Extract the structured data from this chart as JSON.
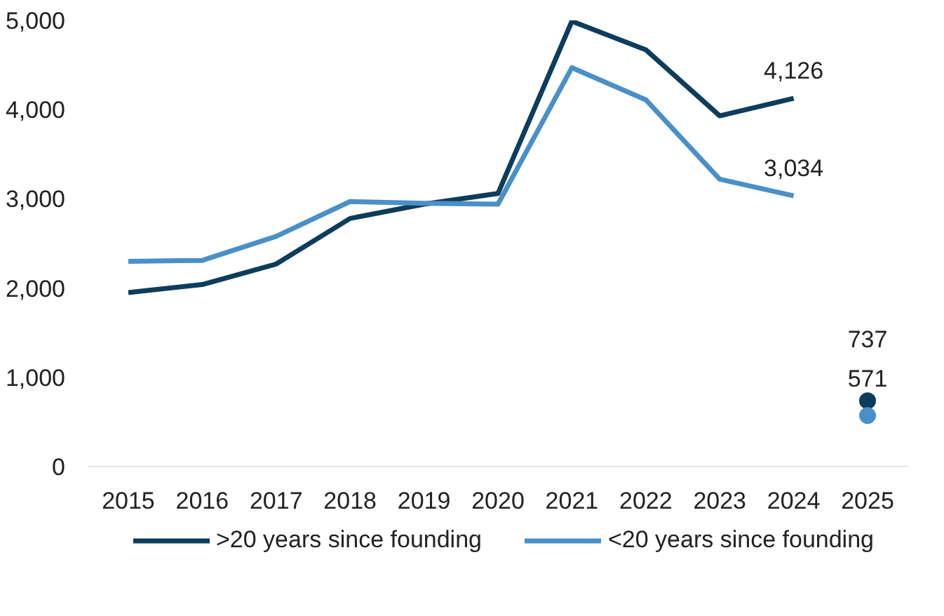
{
  "chart_data": {
    "type": "line",
    "categories": [
      "2015",
      "2016",
      "2017",
      "2018",
      "2019",
      "2020",
      "2021",
      "2022",
      "2023",
      "2024",
      "2025"
    ],
    "series": [
      {
        "name": ">20 years since founding",
        "color": "#0d3d5c",
        "values": [
          1950,
          2040,
          2270,
          2780,
          2940,
          3060,
          4990,
          4670,
          3930,
          4126,
          null
        ],
        "value_labels": [
          null,
          null,
          null,
          null,
          null,
          null,
          null,
          null,
          null,
          "4,126",
          null
        ]
      },
      {
        "name": "<20 years since founding",
        "color": "#4a90c8",
        "values": [
          2300,
          2310,
          2580,
          2970,
          2950,
          2940,
          4470,
          4110,
          3220,
          3034,
          null
        ],
        "value_labels": [
          null,
          null,
          null,
          null,
          null,
          null,
          null,
          null,
          null,
          "3,034",
          null
        ]
      },
      {
        "type": "scatter",
        "color": "#0d3d5c",
        "values": [
          null,
          null,
          null,
          null,
          null,
          null,
          null,
          null,
          null,
          null,
          737
        ],
        "value_labels": [
          null,
          null,
          null,
          null,
          null,
          null,
          null,
          null,
          null,
          null,
          "737"
        ]
      },
      {
        "type": "scatter",
        "color": "#4a90c8",
        "values": [
          null,
          null,
          null,
          null,
          null,
          null,
          null,
          null,
          null,
          null,
          571
        ],
        "value_labels": [
          null,
          null,
          null,
          null,
          null,
          null,
          null,
          null,
          null,
          null,
          "571"
        ]
      }
    ],
    "ylim": [
      0,
      5000
    ],
    "yticks": [
      0,
      {
        "value": 1000,
        "label": "1,000"
      },
      {
        "value": 2000,
        "label": "2,000"
      },
      {
        "value": 3000,
        "label": "3,000"
      },
      {
        "value": 4000,
        "label": "4,000"
      },
      {
        "value": 5000,
        "label": "5,000"
      }
    ],
    "legend": "bottom",
    "grid": false
  }
}
